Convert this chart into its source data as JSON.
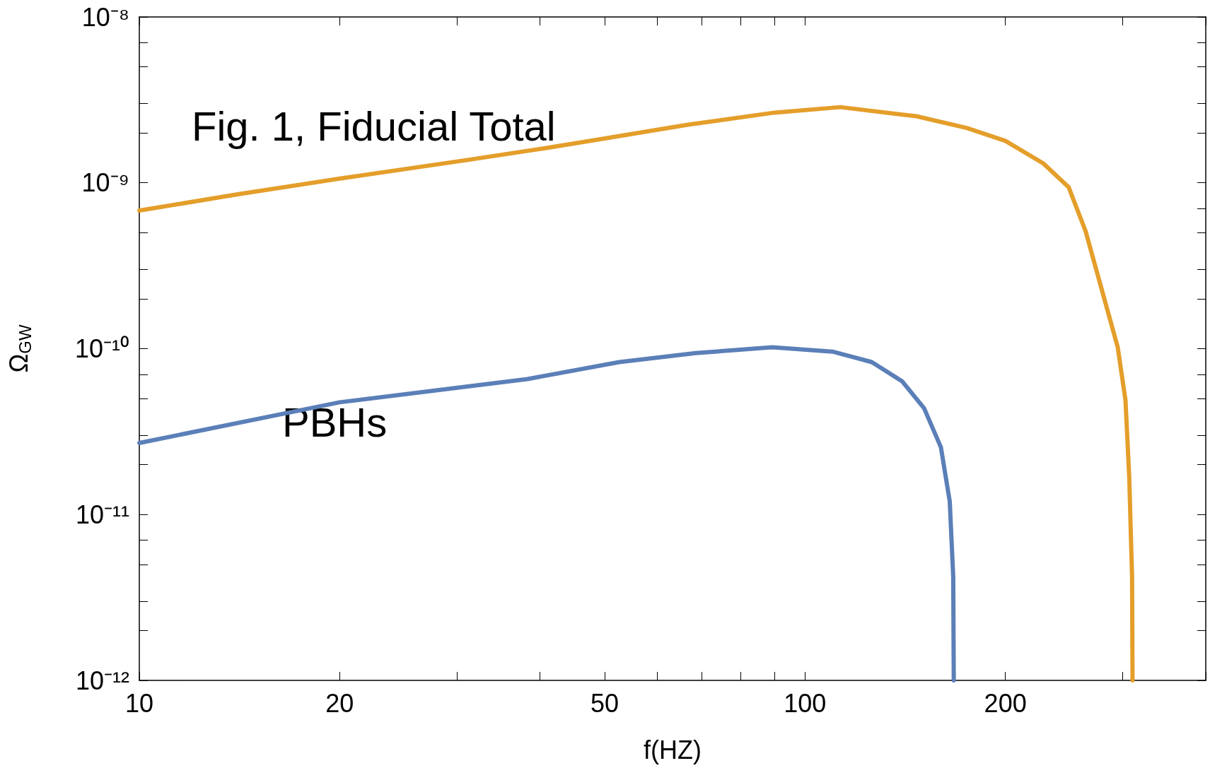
{
  "chart_data": {
    "type": "line",
    "xlabel": "f(HZ)",
    "ylabel": "Ω$_{GW}$",
    "log": "xy",
    "grid": false,
    "legend": false,
    "marker": "none",
    "line_style": "solid",
    "xlim": [
      10,
      400
    ],
    "xticks": [
      10,
      20,
      50,
      100,
      200,
      {
        "value": 30,
        "label": null
      },
      {
        "value": 40,
        "label": null
      },
      {
        "value": 60,
        "label": null
      },
      {
        "value": 70,
        "label": null
      },
      {
        "value": 80,
        "label": null
      },
      {
        "value": 90,
        "label": null
      },
      {
        "value": 300,
        "label": null
      },
      {
        "value": 400,
        "label": null
      }
    ],
    "ylim": [
      1e-12,
      1e-08
    ],
    "yticks": [
      {
        "value": 1e-12,
        "label": "10⁻¹²"
      },
      {
        "value": 1e-11,
        "label": "10⁻¹¹"
      },
      {
        "value": 1e-10,
        "label": "10⁻¹⁰"
      },
      {
        "value": 1e-09,
        "label": "10⁻⁹"
      },
      {
        "value": 1e-08,
        "label": "10⁻⁸"
      },
      {
        "value": 2e-12,
        "label": null
      },
      {
        "value": 3e-12,
        "label": null
      },
      {
        "value": 5e-12,
        "label": null
      },
      {
        "value": 7e-12,
        "label": null
      },
      {
        "value": 2e-11,
        "label": null
      },
      {
        "value": 3e-11,
        "label": null
      },
      {
        "value": 5e-11,
        "label": null
      },
      {
        "value": 7e-11,
        "label": null
      },
      {
        "value": 2e-10,
        "label": null
      },
      {
        "value": 3e-10,
        "label": null
      },
      {
        "value": 5e-10,
        "label": null
      },
      {
        "value": 7e-10,
        "label": null
      },
      {
        "value": 2e-09,
        "label": null
      },
      {
        "value": 3e-09,
        "label": null
      },
      {
        "value": 5e-09,
        "label": null
      },
      {
        "value": 7e-09,
        "label": null
      }
    ],
    "series": [
      {
        "name": "Fig. 1, Fiducial Total",
        "color": "#e49e2a",
        "x": [
          10,
          14,
          20,
          31,
          40.4,
          50,
          66.7,
          90,
          113,
          147,
          175,
          200,
          228,
          249,
          264,
          282,
          295,
          303,
          307,
          310,
          310.5
        ],
        "values": [
          6.8e-10,
          8.5e-10,
          1.06e-09,
          1.37e-09,
          1.61e-09,
          1.85e-09,
          2.24e-09,
          2.65e-09,
          2.86e-09,
          2.52e-09,
          2.14e-09,
          1.79e-09,
          1.31e-09,
          9.4e-10,
          5.1e-10,
          1.96e-10,
          1.02e-10,
          4.9e-11,
          1.67e-11,
          4.2e-12,
          1e-12
        ]
      },
      {
        "name": "PBHs",
        "color": "#5b7fb8",
        "x": [
          10,
          20,
          38.3,
          52.6,
          68.5,
          89.3,
          110,
          126,
          140,
          151,
          160,
          165,
          167,
          167.3
        ],
        "values": [
          2.7e-11,
          4.75e-11,
          6.56e-11,
          8.3e-11,
          9.4e-11,
          1.02e-10,
          9.6e-11,
          8.3e-11,
          6.35e-11,
          4.37e-11,
          2.55e-11,
          1.2e-11,
          4.2e-12,
          1e-12
        ]
      }
    ]
  }
}
